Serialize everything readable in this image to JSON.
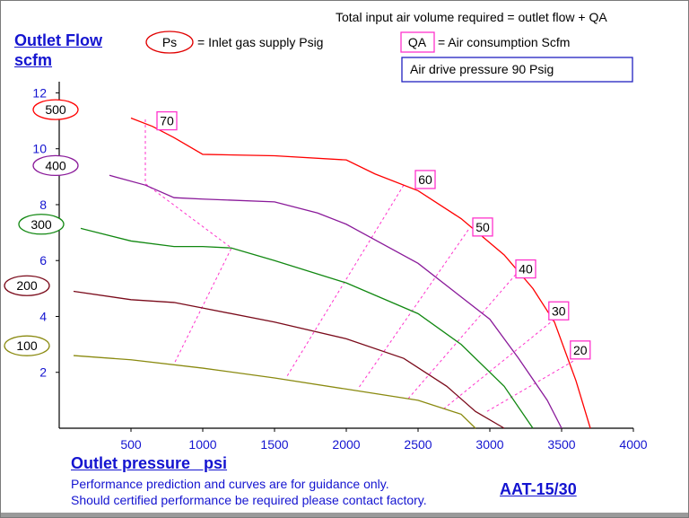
{
  "header": {
    "total_note": "Total input air volume required = outlet flow + QA",
    "ps_symbol": "Ps",
    "ps_text": "= Inlet gas supply  Psig",
    "qa_symbol": "QA",
    "qa_text": "= Air consumption  Scfm",
    "drive_pressure": "Air drive pressure  90 Psig"
  },
  "footer": {
    "disclaimer_line1": "Performance prediction and curves are for guidance only.",
    "disclaimer_line2": "Should certified performance be required please contact factory.",
    "model": "AAT-15/30"
  },
  "colors": {
    "axis": "#1414d0",
    "qa_line": "#ff33cc",
    "ps_500": "#ff0000",
    "ps_400": "#8a1a9a",
    "ps_300": "#118811",
    "ps_200": "#7a0a1a",
    "ps_100": "#8a8a10"
  },
  "chart_data": {
    "type": "line",
    "xlabel": "Outlet pressure   psi",
    "ylabel_line1": "Outlet Flow",
    "ylabel_line2": "scfm",
    "xlim": [
      0,
      4000
    ],
    "ylim": [
      0,
      12.4
    ],
    "x_ticks": [
      500,
      1000,
      1500,
      2000,
      2500,
      3000,
      3500,
      4000
    ],
    "y_ticks": [
      2,
      4,
      6,
      8,
      10,
      12
    ],
    "grid": false,
    "series": [
      {
        "name": "500",
        "color": "#ff0000",
        "label_at": [
          -150,
          11.4
        ],
        "points": [
          [
            500,
            11.1
          ],
          [
            650,
            10.8
          ],
          [
            800,
            10.4
          ],
          [
            1000,
            9.8
          ],
          [
            1500,
            9.75
          ],
          [
            2000,
            9.6
          ],
          [
            2200,
            9.1
          ],
          [
            2500,
            8.5
          ],
          [
            2800,
            7.5
          ],
          [
            3100,
            6.2
          ],
          [
            3300,
            5.0
          ],
          [
            3450,
            3.8
          ],
          [
            3600,
            1.7
          ],
          [
            3700,
            0
          ]
        ]
      },
      {
        "name": "400",
        "color": "#8a1a9a",
        "label_at": [
          -150,
          9.4
        ],
        "points": [
          [
            350,
            9.05
          ],
          [
            600,
            8.7
          ],
          [
            800,
            8.25
          ],
          [
            1000,
            8.2
          ],
          [
            1500,
            8.1
          ],
          [
            1800,
            7.7
          ],
          [
            2000,
            7.3
          ],
          [
            2500,
            5.9
          ],
          [
            3000,
            3.9
          ],
          [
            3200,
            2.5
          ],
          [
            3400,
            1.0
          ],
          [
            3500,
            0
          ]
        ]
      },
      {
        "name": "300",
        "color": "#118811",
        "label_at": [
          -250,
          7.3
        ],
        "points": [
          [
            150,
            7.15
          ],
          [
            500,
            6.7
          ],
          [
            800,
            6.5
          ],
          [
            1000,
            6.5
          ],
          [
            1200,
            6.45
          ],
          [
            1500,
            6.0
          ],
          [
            2000,
            5.2
          ],
          [
            2500,
            4.1
          ],
          [
            2800,
            3.0
          ],
          [
            3100,
            1.5
          ],
          [
            3300,
            0
          ]
        ]
      },
      {
        "name": "200",
        "color": "#7a0a1a",
        "label_at": [
          -350,
          5.1
        ],
        "points": [
          [
            100,
            4.9
          ],
          [
            500,
            4.6
          ],
          [
            800,
            4.5
          ],
          [
            1000,
            4.3
          ],
          [
            1500,
            3.8
          ],
          [
            2000,
            3.2
          ],
          [
            2400,
            2.5
          ],
          [
            2700,
            1.5
          ],
          [
            2900,
            0.6
          ],
          [
            3100,
            0
          ]
        ]
      },
      {
        "name": "100",
        "color": "#8a8a10",
        "label_at": [
          -350,
          2.95
        ],
        "points": [
          [
            100,
            2.6
          ],
          [
            500,
            2.45
          ],
          [
            1000,
            2.15
          ],
          [
            1500,
            1.8
          ],
          [
            2000,
            1.4
          ],
          [
            2500,
            1.0
          ],
          [
            2800,
            0.5
          ],
          [
            2900,
            0
          ]
        ]
      }
    ],
    "qa_lines": [
      {
        "label": "70",
        "label_at": [
          750,
          11.0
        ],
        "points": [
          [
            600,
            11.05
          ],
          [
            600,
            8.75
          ],
          [
            1200,
            6.45
          ],
          [
            800,
            2.3
          ]
        ]
      },
      {
        "label": "60",
        "label_at": [
          2550,
          8.9
        ],
        "points": [
          [
            2400,
            8.7
          ],
          [
            1580,
            1.8
          ]
        ]
      },
      {
        "label": "50",
        "label_at": [
          2950,
          7.2
        ],
        "points": [
          [
            2850,
            7.1
          ],
          [
            2080,
            1.4
          ]
        ]
      },
      {
        "label": "40",
        "label_at": [
          3250,
          5.7
        ],
        "points": [
          [
            3180,
            5.5
          ],
          [
            2430,
            1.05
          ]
        ]
      },
      {
        "label": "30",
        "label_at": [
          3480,
          4.2
        ],
        "points": [
          [
            3450,
            3.9
          ],
          [
            2680,
            0.7
          ]
        ]
      },
      {
        "label": "20",
        "label_at": [
          3630,
          2.8
        ],
        "points": [
          [
            3580,
            2.4
          ],
          [
            2980,
            0.6
          ]
        ]
      }
    ]
  }
}
